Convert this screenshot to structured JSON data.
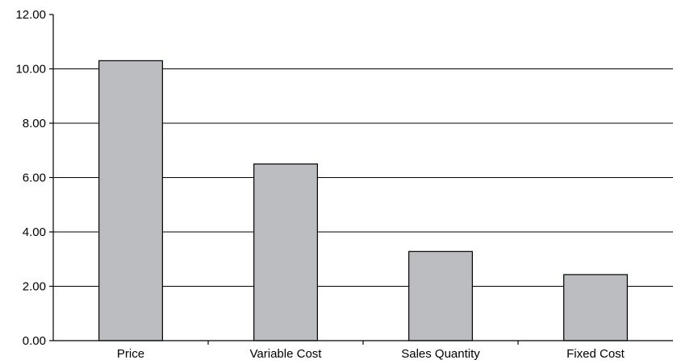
{
  "chart_data": {
    "type": "bar",
    "categories": [
      "Price",
      "Variable Cost",
      "Sales Quantity",
      "Fixed Cost"
    ],
    "values": [
      10.3,
      6.5,
      3.28,
      2.43
    ],
    "ylim": [
      0,
      12
    ],
    "yticks": [
      "0.00",
      "2.00",
      "4.00",
      "6.00",
      "8.00",
      "10.00",
      "12.00"
    ],
    "grid": "horizontal",
    "colors": {
      "bar_fill": "#bcbdc1",
      "bar_stroke": "#000000",
      "grid": "#000000"
    }
  }
}
